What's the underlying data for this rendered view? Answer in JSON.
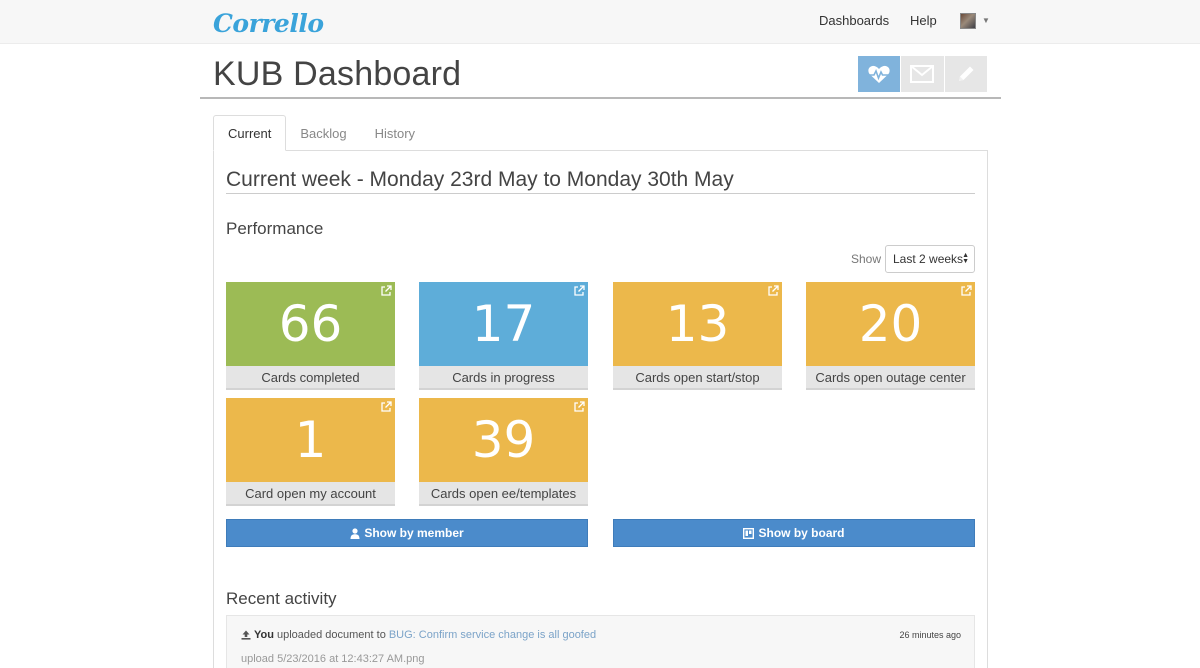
{
  "app": {
    "logo": "Corrello"
  },
  "nav": {
    "dashboards": "Dashboards",
    "help": "Help"
  },
  "page": {
    "title": "KUB Dashboard"
  },
  "view_buttons": [
    "heartbeat-icon",
    "envelope-icon",
    "pencil-icon"
  ],
  "tabs": [
    {
      "label": "Current",
      "active": true
    },
    {
      "label": "Backlog",
      "active": false
    },
    {
      "label": "History",
      "active": false
    }
  ],
  "week": {
    "title": "Current week - Monday 23rd May to Monday 30th May"
  },
  "performance": {
    "title": "Performance",
    "show_label": "Show",
    "show_value": "Last 2 weeks",
    "tiles": [
      {
        "value": "66",
        "label": "Cards completed",
        "color": "#9cbb55"
      },
      {
        "value": "17",
        "label": "Cards in progress",
        "color": "#5eadd9"
      },
      {
        "value": "13",
        "label": "Cards open start/stop",
        "color": "#ecb84b"
      },
      {
        "value": "20",
        "label": "Cards open outage center",
        "color": "#ecb84b"
      },
      {
        "value": "1",
        "label": "Card open my account",
        "color": "#ecb84b"
      },
      {
        "value": "39",
        "label": "Cards open ee/templates",
        "color": "#ecb84b"
      }
    ],
    "show_by_member": "Show by member",
    "show_by_board": "Show by board"
  },
  "recent": {
    "title": "Recent activity",
    "items": [
      {
        "actor": "You",
        "action": "uploaded document to",
        "target": "BUG: Confirm service change is all goofed",
        "time": "26 minutes ago",
        "detail": "upload 5/23/2016 at 12:43:27 AM.png"
      }
    ]
  },
  "colors": {
    "accent": "#4b8bcb",
    "brand": "#3aa3da",
    "active_view": "#80b3dc"
  }
}
